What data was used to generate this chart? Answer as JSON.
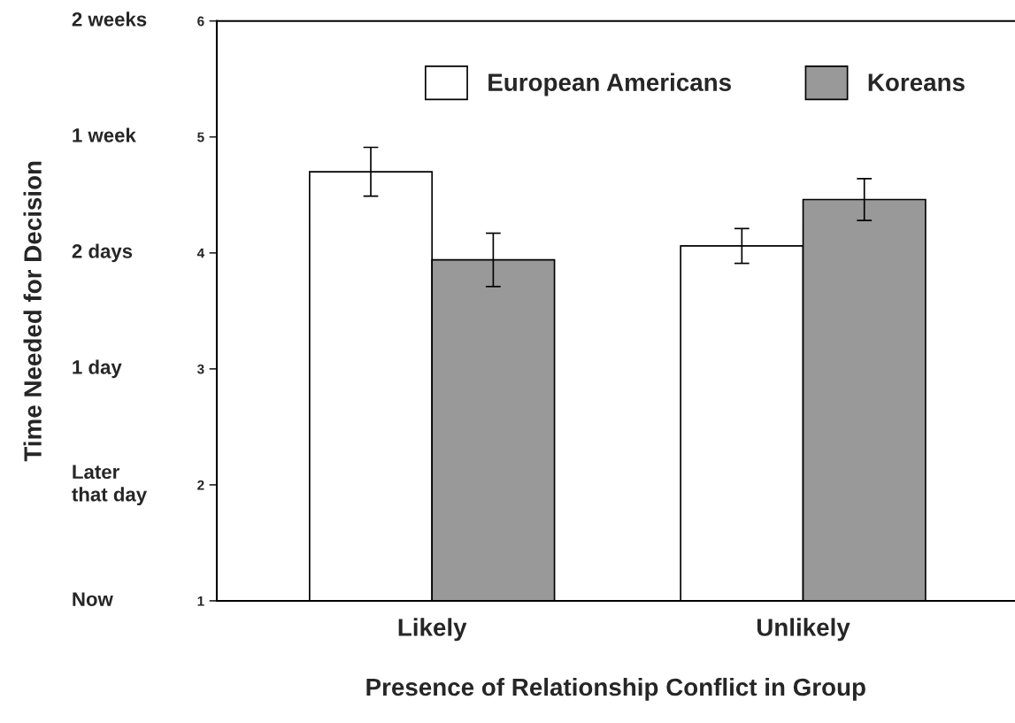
{
  "chart_data": {
    "type": "bar",
    "xlabel": "Presence of Relationship Conflict in Group",
    "categories": [
      "Likely",
      "Unlikely"
    ],
    "series": [
      {
        "name": "European Americans",
        "color": "#ffffff",
        "values": [
          4.7,
          4.06
        ],
        "errors": [
          0.21,
          0.15
        ]
      },
      {
        "name": "Koreans",
        "color": "#999999",
        "values": [
          3.94,
          4.46
        ],
        "errors": [
          0.23,
          0.18
        ]
      }
    ],
    "ylim": [
      1,
      6
    ],
    "yticks": [
      1,
      2,
      3,
      4,
      5,
      6
    ],
    "annotations": [
      "Now",
      "Later\nthat day",
      "1 day",
      "2 days",
      "1 week",
      "2 weeks",
      "Time Needed for Decision"
    ],
    "grid": false,
    "legend": "top"
  }
}
